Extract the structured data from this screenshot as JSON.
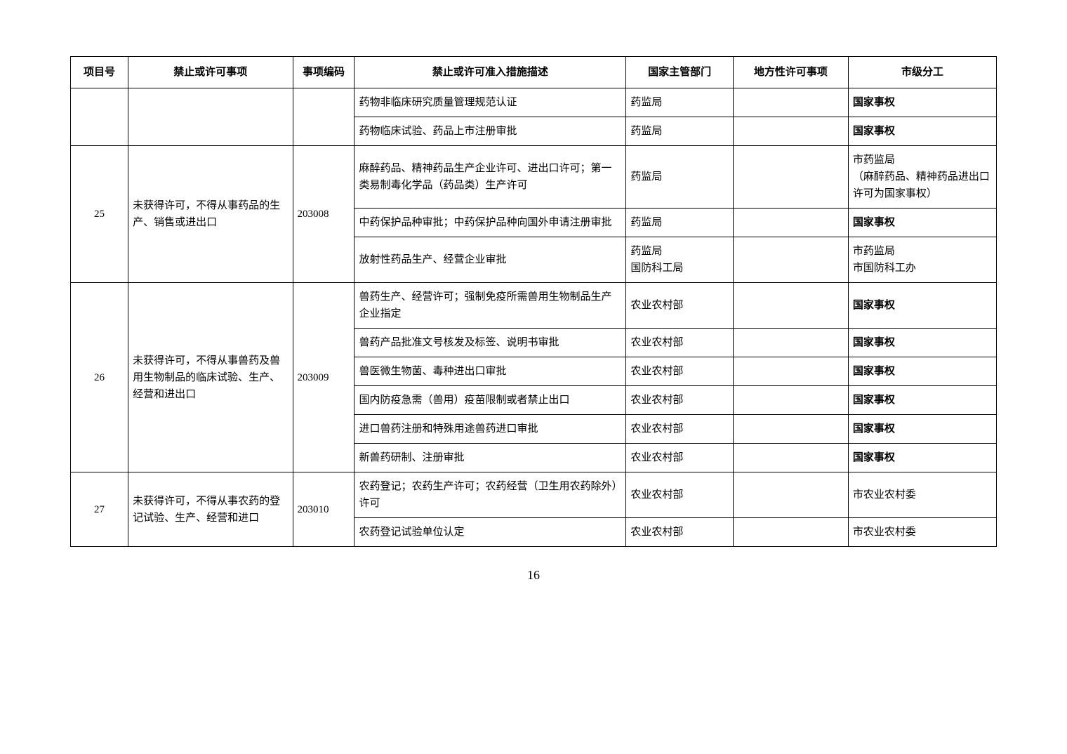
{
  "headers": {
    "c0": "项目号",
    "c1": "禁止或许可事项",
    "c2": "事项编码",
    "c3": "禁止或许可准入措施描述",
    "c4": "国家主管部门",
    "c5": "地方性许可事项",
    "c6": "市级分工"
  },
  "rows": [
    {
      "num": "",
      "item": "",
      "code": "",
      "desc": "药物非临床研究质量管理规范认证",
      "dept": "药监局",
      "local": "",
      "muni": "国家事权",
      "muni_bold": true
    },
    {
      "num": "",
      "item": "",
      "code": "",
      "desc": "药物临床试验、药品上市注册审批",
      "dept": "药监局",
      "local": "",
      "muni": "国家事权",
      "muni_bold": true
    },
    {
      "num": "25",
      "item": "未获得许可，不得从事药品的生产、销售或进出口",
      "code": "203008",
      "desc": "麻醉药品、精神药品生产企业许可、进出口许可；第一类易制毒化学品（药品类）生产许可",
      "dept": "药监局",
      "local": "",
      "muni": "市药监局\n（麻醉药品、精神药品进出口许可为国家事权）",
      "muni_bold": false
    },
    {
      "num": "",
      "item": "",
      "code": "",
      "desc": "中药保护品种审批；中药保护品种向国外申请注册审批",
      "dept": "药监局",
      "local": "",
      "muni": "国家事权",
      "muni_bold": true
    },
    {
      "num": "",
      "item": "",
      "code": "",
      "desc": "放射性药品生产、经营企业审批",
      "dept": "药监局\n国防科工局",
      "local": "",
      "muni": "市药监局\n市国防科工办",
      "muni_bold": false
    },
    {
      "num": "26",
      "item": "未获得许可，不得从事兽药及兽用生物制品的临床试验、生产、经营和进出口",
      "code": "203009",
      "desc": "兽药生产、经营许可；强制免疫所需兽用生物制品生产企业指定",
      "dept": "农业农村部",
      "local": "",
      "muni": "国家事权",
      "muni_bold": true
    },
    {
      "num": "",
      "item": "",
      "code": "",
      "desc": "兽药产品批准文号核发及标签、说明书审批",
      "dept": "农业农村部",
      "local": "",
      "muni": "国家事权",
      "muni_bold": true
    },
    {
      "num": "",
      "item": "",
      "code": "",
      "desc": "兽医微生物菌、毒种进出口审批",
      "dept": "农业农村部",
      "local": "",
      "muni": "国家事权",
      "muni_bold": true
    },
    {
      "num": "",
      "item": "",
      "code": "",
      "desc": "国内防疫急需（兽用）疫苗限制或者禁止出口",
      "dept": "农业农村部",
      "local": "",
      "muni": "国家事权",
      "muni_bold": true
    },
    {
      "num": "",
      "item": "",
      "code": "",
      "desc": "进口兽药注册和特殊用途兽药进口审批",
      "dept": "农业农村部",
      "local": "",
      "muni": "国家事权",
      "muni_bold": true
    },
    {
      "num": "",
      "item": "",
      "code": "",
      "desc": "新兽药研制、注册审批",
      "dept": "农业农村部",
      "local": "",
      "muni": "国家事权",
      "muni_bold": true
    },
    {
      "num": "27",
      "item": "未获得许可，不得从事农药的登记试验、生产、经营和进口",
      "code": "203010",
      "desc": "农药登记；农药生产许可；农药经营（卫生用农药除外）许可",
      "dept": "农业农村部",
      "local": "",
      "muni": "市农业农村委",
      "muni_bold": false
    },
    {
      "num": "",
      "item": "",
      "code": "",
      "desc": "农药登记试验单位认定",
      "dept": "农业农村部",
      "local": "",
      "muni": "市农业农村委",
      "muni_bold": false
    }
  ],
  "groups": [
    {
      "start": 0,
      "span_num": 2,
      "has_item": false
    },
    {
      "start": 2,
      "span_num": 3,
      "has_item": true,
      "num": "25",
      "item": "未获得许可，不得从事药品的生产、销售或进出口",
      "code": "203008"
    },
    {
      "start": 5,
      "span_num": 6,
      "has_item": true,
      "num": "26",
      "item": "未获得许可，不得从事兽药及兽用生物制品的临床试验、生产、经营和进出口",
      "code": "203009"
    },
    {
      "start": 11,
      "span_num": 2,
      "has_item": true,
      "num": "27",
      "item": "未获得许可，不得从事农药的登记试验、生产、经营和进口",
      "code": "203010"
    }
  ],
  "page_number": "16"
}
